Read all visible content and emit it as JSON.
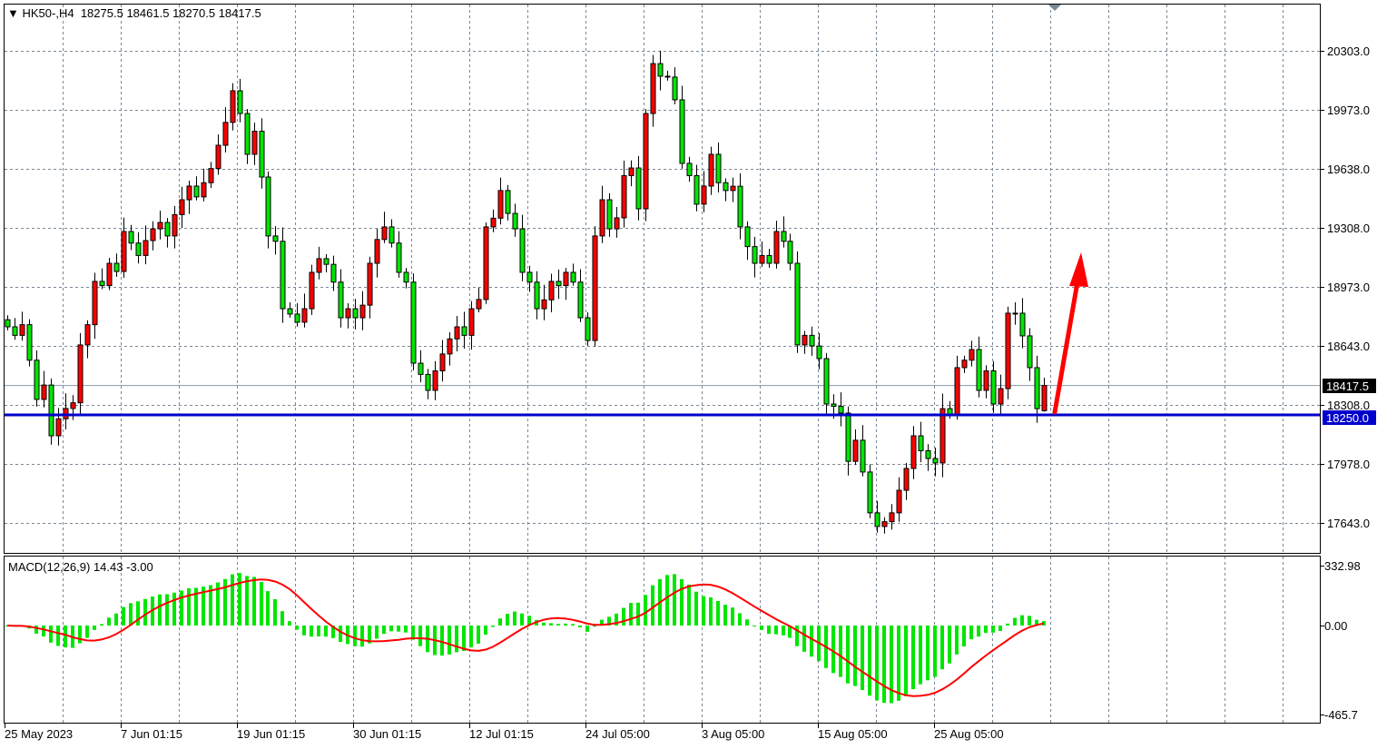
{
  "header": {
    "symbol": "HK50-,H4",
    "open": "18275.5",
    "high": "18461.5",
    "low": "18270.5",
    "close": "18417.5",
    "menu_icon": "triangle-down-icon"
  },
  "macd": {
    "label": "MACD(12,26,9)",
    "main": "14.43",
    "signal": "-3.00",
    "axis_labels": [
      "332.98",
      "0.00",
      "-465.7"
    ],
    "axis_values": [
      332.98,
      0,
      -465.7
    ]
  },
  "price_axis": {
    "labels": [
      "20303.0",
      "19973.0",
      "19638.0",
      "19308.0",
      "18973.0",
      "18643.0",
      "18308.0",
      "17978.0",
      "17643.0"
    ]
  },
  "price_tags": {
    "bid": "18417.5",
    "level": "18250.0"
  },
  "time_axis": {
    "labels": [
      "25 May 2023",
      "7 Jun 01:15",
      "19 Jun 01:15",
      "30 Jun 01:15",
      "12 Jul 01:15",
      "24 Jul 05:00",
      "3 Aug 05:00",
      "15 Aug 05:00",
      "25 Aug 05:00"
    ]
  },
  "colors": {
    "bull": "#ff0000",
    "bear": "#00e600",
    "level_line": "#0000cc",
    "arrow": "#ff0000",
    "signal_line": "#ff0000",
    "histogram": "#00e600"
  },
  "chart_data": {
    "type": "candlestick",
    "symbol": "HK50-",
    "timeframe": "H4",
    "ylim": [
      17500,
      20580
    ],
    "horizontal_level": 18250.0,
    "last_candle": {
      "open": 18275.5,
      "high": 18461.5,
      "low": 18270.5,
      "close": 18417.5
    },
    "closes": [
      18748,
      18700,
      18760,
      18560,
      18339,
      18420,
      18134,
      18230,
      18288,
      18320,
      18646,
      18760,
      19004,
      18980,
      19106,
      19060,
      19285,
      19220,
      19150,
      19234,
      19300,
      19336,
      19260,
      19380,
      19464,
      19541,
      19480,
      19560,
      19640,
      19771,
      19900,
      20078,
      19950,
      19720,
      19850,
      19592,
      19260,
      19230,
      18850,
      18820,
      18774,
      18850,
      19055,
      19132,
      19100,
      19000,
      18799,
      18850,
      18799,
      18870,
      19106,
      19240,
      19311,
      19220,
      19055,
      19000,
      18543,
      18480,
      18390,
      18500,
      18595,
      18680,
      18748,
      18700,
      18850,
      18902,
      19311,
      19360,
      19516,
      19387,
      19300,
      19055,
      19000,
      18850,
      18900,
      19004,
      18980,
      19055,
      19000,
      18799,
      18671,
      19260,
      19464,
      19300,
      19362,
      19600,
      19643,
      19413,
      19950,
      20231,
      20160,
      20155,
      20027,
      19669,
      19600,
      19439,
      19541,
      19720,
      19560,
      19516,
      19540,
      19311,
      19200,
      19106,
      19150,
      19106,
      19285,
      19230,
      19106,
      18646,
      18700,
      18640,
      18569,
      18313,
      18300,
      18262,
      17990,
      18109,
      17930,
      17700,
      17623,
      17650,
      17700,
      17827,
      17950,
      18134,
      18050,
      18006,
      17981,
      18287,
      18250,
      18518,
      18560,
      18620,
      18390,
      18500,
      18313,
      18400,
      18825,
      18825,
      18697,
      18518,
      18287,
      18417.5
    ],
    "annotation": "red arrow pointing up from the 18250 level"
  }
}
